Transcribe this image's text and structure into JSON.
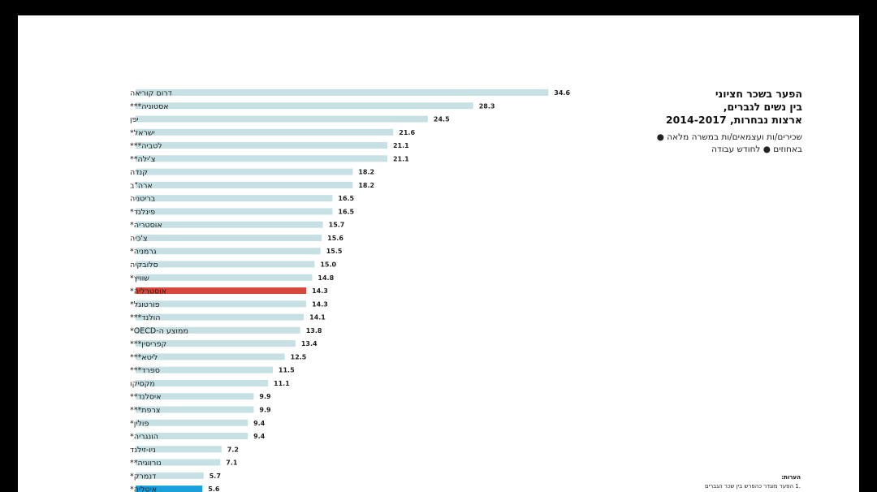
{
  "title": {
    "lines": [
      "הפער בשכר חציוני",
      "בין נשים לגברים,",
      "ארצות נבחרות, 2014-2017"
    ]
  },
  "legend": {
    "lines": [
      "שכירים/ות ועצמאים/ות במשרה מלאה ●",
      "באחוזים ● לחודש עבודה"
    ]
  },
  "notes": {
    "title": "הערות:",
    "item": ".1     הפער מוגדר כהפרש בין שכר הגברים"
  },
  "colors": {
    "default_bar": "#c6e0e3",
    "australia_bar": "#d9473b",
    "italy_bar": "#1aa0dc",
    "background": "#ffffff",
    "frame": "#000000"
  },
  "chart_data": {
    "type": "bar",
    "orientation": "horizontal",
    "categories": [
      "דרום קוריאה",
      "אסטוניה***",
      "יפן",
      "ישראל*",
      "לטביה***",
      "צ'ילה**",
      "קנדה",
      "ארה\"ב",
      "בריטניה",
      "פינלנד*",
      "אוסטריה*",
      "צ'כיה",
      "גרמניה*",
      "סלובקיה",
      "שוויץ*",
      "אוסטרליה*",
      "פורטוגל*",
      "הולנד***",
      "ממוצע ה-OECD*",
      "קפריסין***",
      "ליטא***",
      "ספרד***",
      "מקסיקו",
      "איסלנד**",
      "צרפת***",
      "פולין*",
      "הונגריה*",
      "ניו-זילנד",
      "נורווגיה**",
      "דנמרק*",
      "איטליה*"
    ],
    "values": [
      34.6,
      28.3,
      24.5,
      21.6,
      21.1,
      21.1,
      18.2,
      18.2,
      16.5,
      16.5,
      15.7,
      15.6,
      15.5,
      15.0,
      14.8,
      14.3,
      14.3,
      14.1,
      13.8,
      13.4,
      12.5,
      11.5,
      11.1,
      9.9,
      9.9,
      9.4,
      9.4,
      7.2,
      7.1,
      5.7,
      5.6
    ],
    "value_labels": [
      "34.6",
      "28.3",
      "24.5",
      "21.6",
      "21.1",
      "21.1",
      "18.2",
      "18.2",
      "16.5",
      "16.5",
      "15.7",
      "15.6",
      "15.5",
      "15.0",
      "14.8",
      "14.3",
      "14.3",
      "14.1",
      "13.8",
      "13.4",
      "12.5",
      "11.5",
      "11.1",
      "9.9",
      "9.9",
      "9.4",
      "9.4",
      "7.2",
      "7.1",
      "5.7",
      "5.6"
    ],
    "highlight": {
      "אוסטרליה*": "#d9473b",
      "איטליה*": "#1aa0dc"
    },
    "xlim": [
      0,
      35
    ],
    "grid": false,
    "legend_position": "top-right"
  }
}
